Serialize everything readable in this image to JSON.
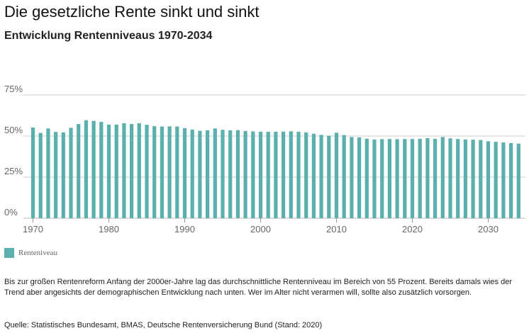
{
  "colors": {
    "bar": "#5bb0ad",
    "gridline": "#cccccc",
    "tick_text": "#666666"
  },
  "chart_data": {
    "type": "bar",
    "title": "Die gesetzliche Rente sinkt und sinkt",
    "subtitle": "Entwicklung Rentenniveaus 1970-2034",
    "note": "Bis zur großen Rentenreform Anfang der 2000er-Jahre lag das durchschnittliche Rentenniveau im Bereich von 55 Prozent. Bereits damals wies der Trend aber angesichts der demographischen Entwicklung nach unten. Wer im Alter nicht verarmen will, sollte also zusätzlich vorsorgen.",
    "source": "Quelle: Statistisches Bundesamt, BMAS, Deutsche Rentenversicherung Bund (Stand: 2020)",
    "xlabel": "",
    "ylabel": "",
    "ylim": [
      0,
      75
    ],
    "grid": true,
    "legend_position": "bottom-left",
    "y_ticks": [
      {
        "value": 0,
        "label": "0%"
      },
      {
        "value": 25,
        "label": "25%"
      },
      {
        "value": 50,
        "label": "50%"
      },
      {
        "value": 75,
        "label": "75%"
      }
    ],
    "x_ticks": [
      {
        "value": 1970,
        "label": "1970"
      },
      {
        "value": 1980,
        "label": "1980"
      },
      {
        "value": 1990,
        "label": "1990"
      },
      {
        "value": 2000,
        "label": "2000"
      },
      {
        "value": 2010,
        "label": "2010"
      },
      {
        "value": 2020,
        "label": "2020"
      },
      {
        "value": 2030,
        "label": "2030"
      }
    ],
    "x": [
      1970,
      1971,
      1972,
      1973,
      1974,
      1975,
      1976,
      1977,
      1978,
      1979,
      1980,
      1981,
      1982,
      1983,
      1984,
      1985,
      1986,
      1987,
      1988,
      1989,
      1990,
      1991,
      1992,
      1993,
      1994,
      1995,
      1996,
      1997,
      1998,
      1999,
      2000,
      2001,
      2002,
      2003,
      2004,
      2005,
      2006,
      2007,
      2008,
      2009,
      2010,
      2011,
      2012,
      2013,
      2014,
      2015,
      2016,
      2017,
      2018,
      2019,
      2020,
      2021,
      2022,
      2023,
      2024,
      2025,
      2026,
      2027,
      2028,
      2029,
      2030,
      2031,
      2032,
      2033,
      2034
    ],
    "series": [
      {
        "name": "Renteniveau",
        "values": [
          55.2,
          51.9,
          54.6,
          52.5,
          52.2,
          55.0,
          57.3,
          59.6,
          59.2,
          58.6,
          57.0,
          57.0,
          57.8,
          57.3,
          57.8,
          56.9,
          56.0,
          55.8,
          55.9,
          55.8,
          54.8,
          53.9,
          53.2,
          53.5,
          54.6,
          53.8,
          53.5,
          53.6,
          53.1,
          52.8,
          52.6,
          52.6,
          52.6,
          52.7,
          52.9,
          52.6,
          52.2,
          51.4,
          50.7,
          50.2,
          52.0,
          50.6,
          49.4,
          49.2,
          48.4,
          47.9,
          48.1,
          48.2,
          48.1,
          48.2,
          48.2,
          48.3,
          48.7,
          48.3,
          49.4,
          48.6,
          48.2,
          47.9,
          47.8,
          47.6,
          46.8,
          46.5,
          46.1,
          45.7,
          45.4
        ]
      }
    ]
  }
}
